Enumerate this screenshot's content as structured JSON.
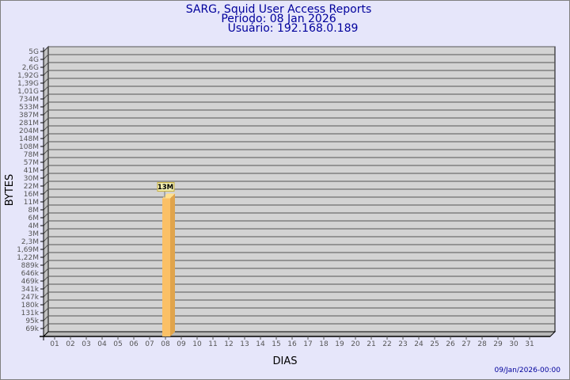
{
  "chart_data": {
    "type": "bar",
    "title": [
      "SARG, Squid User Access Reports",
      "Período: 08 Jan 2026",
      "Usuário: 192.168.0.189"
    ],
    "xlabel": "DIAS",
    "ylabel": "BYTES",
    "yscale": "log",
    "y_ticks": [
      "5G",
      "4G",
      "2,6G",
      "1,92G",
      "1,39G",
      "1,01G",
      "734M",
      "533M",
      "387M",
      "281M",
      "204M",
      "148M",
      "108M",
      "78M",
      "57M",
      "41M",
      "30M",
      "22M",
      "16M",
      "11M",
      "8M",
      "6M",
      "4M",
      "3M",
      "2,3M",
      "1,69M",
      "1,22M",
      "889k",
      "646k",
      "469k",
      "341k",
      "247k",
      "180k",
      "131k",
      "95k",
      "69k"
    ],
    "categories": [
      "01",
      "02",
      "03",
      "04",
      "05",
      "06",
      "07",
      "08",
      "09",
      "10",
      "11",
      "12",
      "13",
      "14",
      "15",
      "16",
      "17",
      "18",
      "19",
      "20",
      "21",
      "22",
      "23",
      "24",
      "25",
      "26",
      "27",
      "28",
      "29",
      "30",
      "31"
    ],
    "bars": [
      {
        "category": "08",
        "value": "13M",
        "label": "13M"
      }
    ],
    "grid": true,
    "colors": {
      "bar_front": "#fbc066",
      "bar_side": "#e0a44c",
      "bar_top": "#ffe08f",
      "plot_bg": "#d3d3d3",
      "label_bg": "#f2eeb0",
      "title": "#00009c"
    }
  },
  "footer": {
    "timestamp": "09/Jan/2026-00:00"
  }
}
